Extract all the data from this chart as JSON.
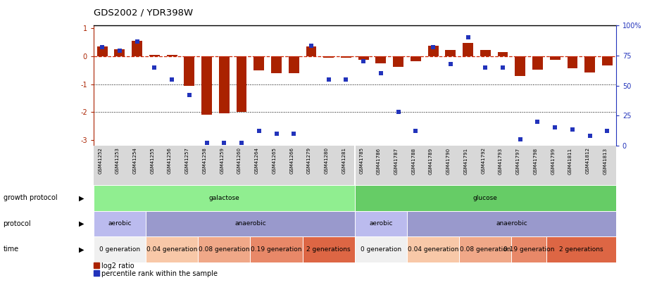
{
  "title": "GDS2002 / YDR398W",
  "samples": [
    "GSM41252",
    "GSM41253",
    "GSM41254",
    "GSM41255",
    "GSM41256",
    "GSM41257",
    "GSM41258",
    "GSM41259",
    "GSM41260",
    "GSM41264",
    "GSM41265",
    "GSM41266",
    "GSM41279",
    "GSM41280",
    "GSM41281",
    "GSM41785",
    "GSM41786",
    "GSM41787",
    "GSM41788",
    "GSM41789",
    "GSM41790",
    "GSM41791",
    "GSM41792",
    "GSM41793",
    "GSM41797",
    "GSM41798",
    "GSM41799",
    "GSM41811",
    "GSM41812",
    "GSM41813"
  ],
  "log2_ratio": [
    0.35,
    0.25,
    0.55,
    0.05,
    0.05,
    -1.05,
    -2.1,
    -2.05,
    -2.0,
    -0.5,
    -0.6,
    -0.6,
    0.35,
    -0.05,
    -0.05,
    -0.12,
    -0.25,
    -0.38,
    -0.18,
    0.38,
    0.22,
    0.48,
    0.22,
    0.15,
    -0.72,
    -0.48,
    -0.12,
    -0.42,
    -0.58,
    -0.32
  ],
  "percentile": [
    82,
    79,
    87,
    65,
    55,
    42,
    2,
    2,
    2,
    12,
    10,
    10,
    83,
    55,
    55,
    70,
    60,
    28,
    12,
    82,
    68,
    90,
    65,
    65,
    5,
    20,
    15,
    13,
    8,
    12
  ],
  "growth_protocol": [
    {
      "label": "galactose",
      "start": 0,
      "end": 14,
      "color": "#90EE90"
    },
    {
      "label": "glucose",
      "start": 15,
      "end": 29,
      "color": "#66CC66"
    }
  ],
  "protocol": [
    {
      "label": "aerobic",
      "start": 0,
      "end": 2,
      "color": "#BBBBEE"
    },
    {
      "label": "anaerobic",
      "start": 3,
      "end": 14,
      "color": "#9999CC"
    },
    {
      "label": "aerobic",
      "start": 15,
      "end": 17,
      "color": "#BBBBEE"
    },
    {
      "label": "anaerobic",
      "start": 18,
      "end": 29,
      "color": "#9999CC"
    }
  ],
  "time_blocks": [
    {
      "label": "0 generation",
      "start": 0,
      "end": 2,
      "color": "#F0F0F0"
    },
    {
      "label": "0.04 generation",
      "start": 3,
      "end": 5,
      "color": "#F8C8A8"
    },
    {
      "label": "0.08 generation",
      "start": 6,
      "end": 8,
      "color": "#F0A888"
    },
    {
      "label": "0.19 generation",
      "start": 9,
      "end": 11,
      "color": "#E88868"
    },
    {
      "label": "2 generations",
      "start": 12,
      "end": 14,
      "color": "#DD6644"
    },
    {
      "label": "0 generation",
      "start": 15,
      "end": 17,
      "color": "#F0F0F0"
    },
    {
      "label": "0.04 generation",
      "start": 18,
      "end": 20,
      "color": "#F8C8A8"
    },
    {
      "label": "0.08 generation",
      "start": 21,
      "end": 23,
      "color": "#F0A888"
    },
    {
      "label": "0.19 generation",
      "start": 24,
      "end": 25,
      "color": "#E88868"
    },
    {
      "label": "2 generations",
      "start": 26,
      "end": 29,
      "color": "#DD6644"
    }
  ],
  "bar_color": "#AA2200",
  "dot_color": "#2233BB",
  "zero_line_color": "#CC2200",
  "ylim_left": [
    -3.2,
    1.1
  ],
  "ylim_right": [
    0,
    100
  ],
  "dotted_lines": [
    -1.0,
    -2.0
  ],
  "background_color": "#FFFFFF",
  "xtick_bg": "#D8D8D8"
}
